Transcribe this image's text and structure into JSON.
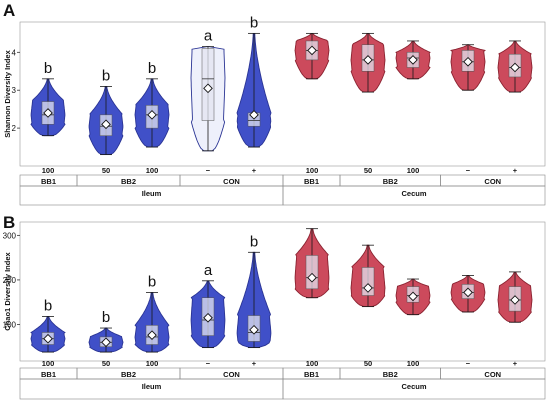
{
  "colors": {
    "ileum": "#4050c8",
    "ileum_edge": "#2a3494",
    "cecum": "#cc4a5c",
    "cecum_edge": "#8a2230",
    "box": "#e3e4f0",
    "open_violin": "#eef0fb"
  },
  "chart_data": [
    {
      "type": "violin",
      "panel_label": "A",
      "title": "",
      "xlabel": "",
      "ylabel": "Shannon Diversity Index",
      "ylim": [
        1.0,
        4.8
      ],
      "yticks": [
        2,
        3,
        4
      ],
      "grid": false,
      "groups": [
        {
          "tissue": "Ileum",
          "treatment": "BB1",
          "dose": "100",
          "letter": "b",
          "style": "filled",
          "min": 1.8,
          "q1": 2.1,
          "median": 2.35,
          "mean": 2.4,
          "q3": 2.7,
          "max": 3.3
        },
        {
          "tissue": "Ileum",
          "treatment": "BB2",
          "dose": "50",
          "letter": "b",
          "style": "filled",
          "min": 1.3,
          "q1": 1.8,
          "median": 2.05,
          "mean": 2.1,
          "q3": 2.35,
          "max": 3.1
        },
        {
          "tissue": "Ileum",
          "treatment": "BB2",
          "dose": "100",
          "letter": "b",
          "style": "filled",
          "min": 1.5,
          "q1": 2.0,
          "median": 2.35,
          "mean": 2.35,
          "q3": 2.6,
          "max": 3.3
        },
        {
          "tissue": "Ileum",
          "treatment": "CON",
          "dose": "−",
          "letter": "a",
          "style": "open",
          "min": 1.4,
          "q1": 2.2,
          "median": 3.3,
          "mean": 3.05,
          "q3": 4.1,
          "max": 4.15
        },
        {
          "tissue": "Ileum",
          "treatment": "CON",
          "dose": "+",
          "letter": "b",
          "style": "filled",
          "min": 1.5,
          "q1": 2.05,
          "median": 2.2,
          "mean": 2.35,
          "q3": 2.4,
          "max": 4.5
        },
        {
          "tissue": "Cecum",
          "treatment": "BB1",
          "dose": "100",
          "letter": "",
          "style": "filled",
          "min": 3.3,
          "q1": 3.8,
          "median": 4.05,
          "mean": 4.05,
          "q3": 4.3,
          "max": 4.5
        },
        {
          "tissue": "Cecum",
          "treatment": "BB2",
          "dose": "50",
          "letter": "",
          "style": "filled",
          "min": 2.95,
          "q1": 3.5,
          "median": 3.8,
          "mean": 3.8,
          "q3": 4.2,
          "max": 4.5
        },
        {
          "tissue": "Cecum",
          "treatment": "BB2",
          "dose": "100",
          "letter": "",
          "style": "filled",
          "min": 3.3,
          "q1": 3.6,
          "median": 3.85,
          "mean": 3.8,
          "q3": 4.0,
          "max": 4.3
        },
        {
          "tissue": "Cecum",
          "treatment": "CON",
          "dose": "−",
          "letter": "",
          "style": "filled",
          "min": 3.0,
          "q1": 3.5,
          "median": 3.75,
          "mean": 3.75,
          "q3": 4.05,
          "max": 4.2
        },
        {
          "tissue": "Cecum",
          "treatment": "CON",
          "dose": "+",
          "letter": "",
          "style": "filled",
          "min": 2.95,
          "q1": 3.35,
          "median": 3.6,
          "mean": 3.6,
          "q3": 3.95,
          "max": 4.3
        }
      ]
    },
    {
      "type": "violin",
      "panel_label": "B",
      "title": "",
      "xlabel": "",
      "ylabel": "Chao1 Diversity Index",
      "ylim": [
        18,
        330
      ],
      "yticks": [
        100,
        200,
        300
      ],
      "grid": false,
      "groups": [
        {
          "tissue": "Ileum",
          "treatment": "BB1",
          "dose": "100",
          "letter": "b",
          "style": "filled",
          "min": 38,
          "q1": 55,
          "median": 68,
          "mean": 68,
          "q3": 82,
          "max": 118
        },
        {
          "tissue": "Ileum",
          "treatment": "BB2",
          "dose": "50",
          "letter": "b",
          "style": "filled",
          "min": 38,
          "q1": 50,
          "median": 60,
          "mean": 60,
          "q3": 72,
          "max": 92
        },
        {
          "tissue": "Ileum",
          "treatment": "BB2",
          "dose": "100",
          "letter": "b",
          "style": "filled",
          "min": 38,
          "q1": 55,
          "median": 72,
          "mean": 76,
          "q3": 98,
          "max": 172
        },
        {
          "tissue": "Ileum",
          "treatment": "CON",
          "dose": "−",
          "letter": "a",
          "style": "filled",
          "min": 48,
          "q1": 75,
          "median": 110,
          "mean": 115,
          "q3": 160,
          "max": 198
        },
        {
          "tissue": "Ileum",
          "treatment": "CON",
          "dose": "+",
          "letter": "b",
          "style": "filled",
          "min": 48,
          "q1": 62,
          "median": 82,
          "mean": 88,
          "q3": 120,
          "max": 262
        },
        {
          "tissue": "Cecum",
          "treatment": "BB1",
          "dose": "100",
          "letter": "",
          "style": "filled",
          "min": 160,
          "q1": 180,
          "median": 205,
          "mean": 205,
          "q3": 255,
          "max": 315
        },
        {
          "tissue": "Cecum",
          "treatment": "BB2",
          "dose": "50",
          "letter": "",
          "style": "filled",
          "min": 140,
          "q1": 165,
          "median": 182,
          "mean": 182,
          "q3": 228,
          "max": 278
        },
        {
          "tissue": "Cecum",
          "treatment": "BB2",
          "dose": "100",
          "letter": "",
          "style": "filled",
          "min": 122,
          "q1": 150,
          "median": 165,
          "mean": 163,
          "q3": 185,
          "max": 202
        },
        {
          "tissue": "Cecum",
          "treatment": "CON",
          "dose": "−",
          "letter": "",
          "style": "filled",
          "min": 128,
          "q1": 158,
          "median": 172,
          "mean": 172,
          "q3": 190,
          "max": 210
        },
        {
          "tissue": "Cecum",
          "treatment": "CON",
          "dose": "+",
          "letter": "",
          "style": "filled",
          "min": 105,
          "q1": 130,
          "median": 155,
          "mean": 155,
          "q3": 185,
          "max": 218
        }
      ]
    }
  ]
}
